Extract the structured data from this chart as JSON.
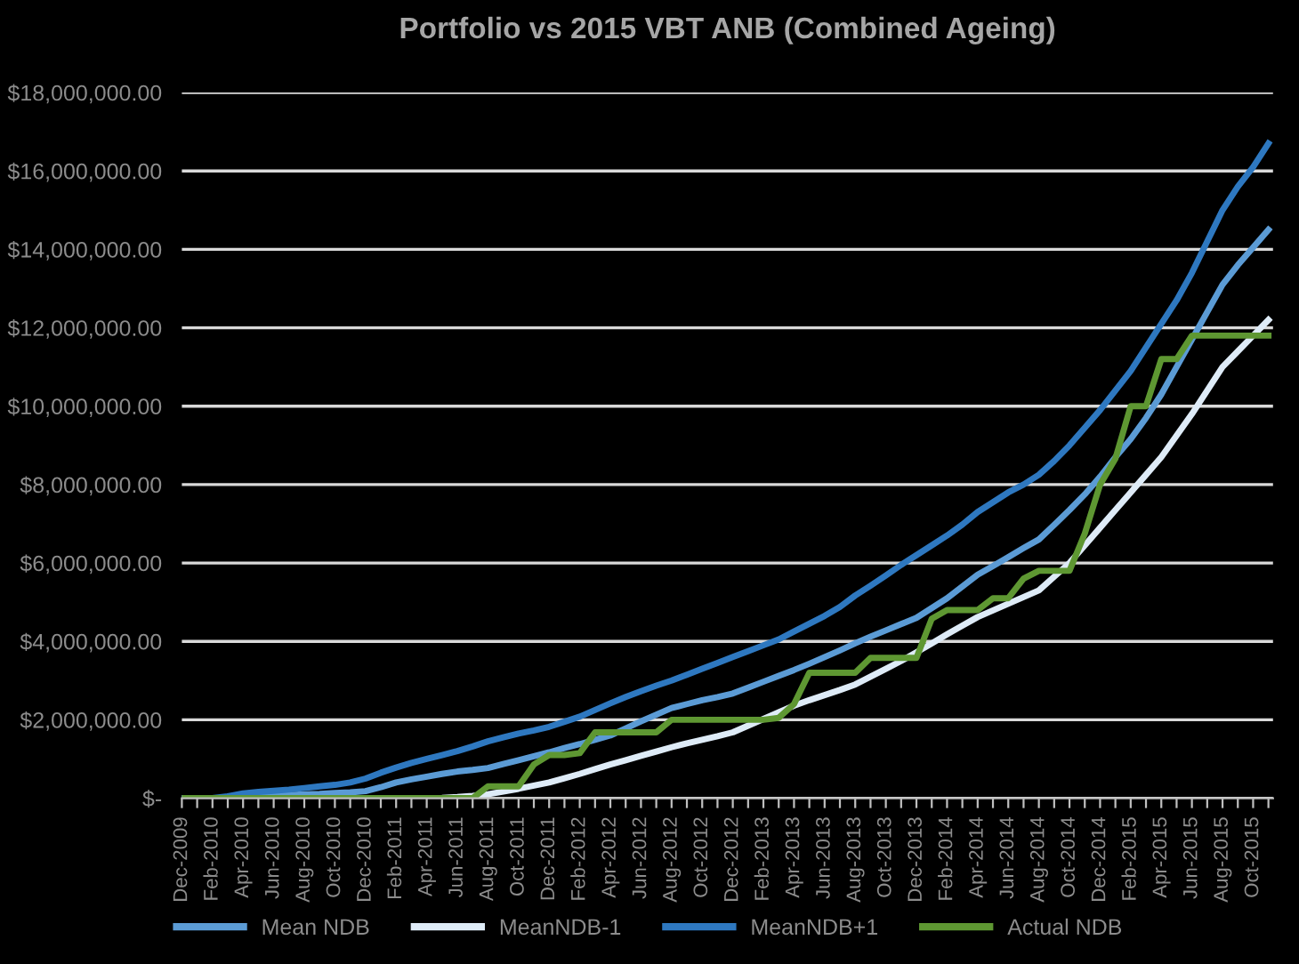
{
  "chart_data": {
    "type": "line",
    "title": "Portfolio vs 2015 VBT ANB (Combined Ageing)",
    "categories": [
      "Dec-2009",
      null,
      "Feb-2010",
      null,
      "Apr-2010",
      null,
      "Jun-2010",
      null,
      "Aug-2010",
      null,
      "Oct-2010",
      null,
      "Dec-2010",
      null,
      "Feb-2011",
      null,
      "Apr-2011",
      null,
      "Jun-2011",
      null,
      "Aug-2011",
      null,
      "Oct-2011",
      null,
      "Dec-2011",
      null,
      "Feb-2012",
      null,
      "Apr-2012",
      null,
      "Jun-2012",
      null,
      "Aug-2012",
      null,
      "Oct-2012",
      null,
      "Dec-2012",
      null,
      "Feb-2013",
      null,
      "Apr-2013",
      null,
      "Jun-2013",
      null,
      "Aug-2013",
      null,
      "Oct-2013",
      null,
      "Dec-2013",
      null,
      "Feb-2014",
      null,
      "Apr-2014",
      null,
      "Jun-2014",
      null,
      "Aug-2014",
      null,
      "Oct-2014",
      null,
      "Dec-2014",
      null,
      "Feb-2015",
      null,
      "Apr-2015",
      null,
      "Jun-2015",
      null,
      "Aug-2015",
      null,
      "Oct-2015",
      null
    ],
    "series": [
      {
        "name": "Mean NDB",
        "color": "#5b9bd5",
        "values": [
          0,
          0,
          0,
          0,
          30000,
          50000,
          70000,
          80000,
          100000,
          110000,
          130000,
          150000,
          180000,
          280000,
          400000,
          480000,
          550000,
          620000,
          680000,
          720000,
          770000,
          870000,
          970000,
          1070000,
          1170000,
          1280000,
          1380000,
          1490000,
          1600000,
          1780000,
          1960000,
          2130000,
          2300000,
          2400000,
          2500000,
          2580000,
          2670000,
          2820000,
          2970000,
          3120000,
          3270000,
          3430000,
          3600000,
          3770000,
          3950000,
          4120000,
          4280000,
          4440000,
          4600000,
          4850000,
          5100000,
          5400000,
          5700000,
          5920000,
          6150000,
          6380000,
          6600000,
          6970000,
          7350000,
          7750000,
          8200000,
          8700000,
          9160000,
          9700000,
          10300000,
          11000000,
          11700000,
          12400000,
          13100000,
          13600000,
          14050000,
          14500000
        ]
      },
      {
        "name": "MeanNDB-1",
        "color": "#deebf7",
        "values": [
          0,
          0,
          0,
          0,
          0,
          0,
          0,
          0,
          0,
          0,
          0,
          0,
          0,
          0,
          0,
          0,
          0,
          10000,
          30000,
          60000,
          100000,
          170000,
          240000,
          320000,
          400000,
          510000,
          620000,
          740000,
          860000,
          970000,
          1080000,
          1190000,
          1300000,
          1400000,
          1490000,
          1580000,
          1680000,
          1850000,
          2020000,
          2190000,
          2360000,
          2500000,
          2630000,
          2760000,
          2900000,
          3100000,
          3300000,
          3500000,
          3720000,
          3950000,
          4180000,
          4400000,
          4620000,
          4790000,
          4960000,
          5130000,
          5300000,
          5650000,
          6000000,
          6450000,
          6900000,
          7350000,
          7800000,
          8250000,
          8700000,
          9250000,
          9800000,
          10400000,
          11000000,
          11400000,
          11800000,
          12200000
        ]
      },
      {
        "name": "MeanNDB+1",
        "color": "#2e78c0",
        "values": [
          0,
          0,
          0,
          50000,
          120000,
          160000,
          190000,
          220000,
          260000,
          300000,
          340000,
          400000,
          500000,
          650000,
          780000,
          900000,
          1000000,
          1100000,
          1200000,
          1320000,
          1450000,
          1550000,
          1650000,
          1730000,
          1820000,
          1950000,
          2080000,
          2250000,
          2420000,
          2580000,
          2730000,
          2870000,
          3000000,
          3150000,
          3300000,
          3450000,
          3600000,
          3750000,
          3900000,
          4050000,
          4250000,
          4450000,
          4650000,
          4880000,
          5170000,
          5420000,
          5680000,
          5950000,
          6200000,
          6450000,
          6700000,
          6980000,
          7300000,
          7550000,
          7800000,
          8000000,
          8250000,
          8600000,
          9000000,
          9450000,
          9900000,
          10400000,
          10900000,
          11500000,
          12100000,
          12700000,
          13400000,
          14200000,
          15000000,
          15600000,
          16100000,
          16700000
        ]
      },
      {
        "name": "Actual NDB",
        "color": "#5e9732",
        "values": [
          0,
          0,
          0,
          0,
          0,
          0,
          0,
          0,
          0,
          0,
          0,
          0,
          0,
          0,
          0,
          0,
          0,
          0,
          0,
          0,
          300000,
          300000,
          300000,
          860000,
          1100000,
          1100000,
          1150000,
          1680000,
          1680000,
          1680000,
          1680000,
          1680000,
          2000000,
          2000000,
          2000000,
          2000000,
          2000000,
          2000000,
          2000000,
          2050000,
          2400000,
          3200000,
          3200000,
          3200000,
          3200000,
          3580000,
          3580000,
          3580000,
          3580000,
          4580000,
          4800000,
          4800000,
          4800000,
          5100000,
          5100000,
          5600000,
          5800000,
          5800000,
          5800000,
          6750000,
          8000000,
          8660000,
          10000000,
          10000000,
          11200000,
          11200000,
          11800000,
          11800000,
          11800000,
          11800000,
          11800000,
          11800000
        ]
      }
    ],
    "ylim": [
      0,
      18000000
    ],
    "yticks": [
      {
        "value": 0,
        "label": "$-"
      },
      {
        "value": 2000000,
        "label": "$2,000,000.00"
      },
      {
        "value": 4000000,
        "label": "$4,000,000.00"
      },
      {
        "value": 6000000,
        "label": "$6,000,000.00"
      },
      {
        "value": 8000000,
        "label": "$8,000,000.00"
      },
      {
        "value": 10000000,
        "label": "$10,000,000.00"
      },
      {
        "value": 12000000,
        "label": "$12,000,000.00"
      },
      {
        "value": 14000000,
        "label": "$14,000,000.00"
      },
      {
        "value": 16000000,
        "label": "$16,000,000.00"
      },
      {
        "value": 18000000,
        "label": "$18,000,000.00"
      }
    ],
    "grid": "y",
    "legend": "bottom",
    "marker": "none",
    "line_style": "solid"
  }
}
